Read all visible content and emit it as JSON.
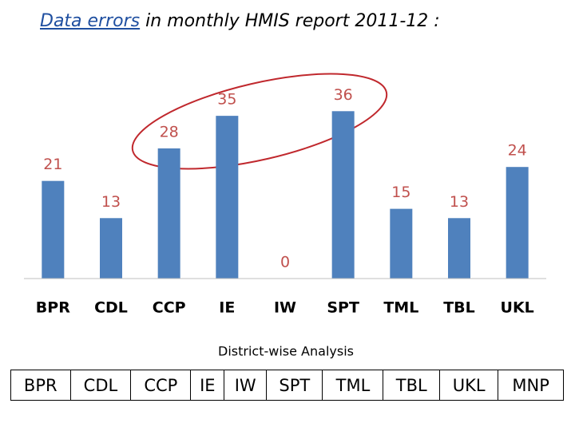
{
  "chart_data": {
    "type": "bar",
    "title_link": "Data errors",
    "title": "in monthly HMIS report 2011-12 :",
    "categories": [
      "BPR",
      "CDL",
      "CCP",
      "IE",
      "IW",
      "SPT",
      "TML",
      "TBL",
      "UKL"
    ],
    "values": [
      21,
      13,
      28,
      35,
      0,
      36,
      15,
      13,
      24
    ],
    "color": "#4f81bd",
    "label_color": "#c0504d",
    "ylim": [
      0,
      40
    ],
    "x_label": "District-wise Analysis"
  },
  "table": {
    "cells": [
      "BPR",
      "CDL",
      "CCP",
      "IE",
      "IW",
      "SPT",
      "TML",
      "TBL",
      "UKL",
      "MNP"
    ]
  }
}
